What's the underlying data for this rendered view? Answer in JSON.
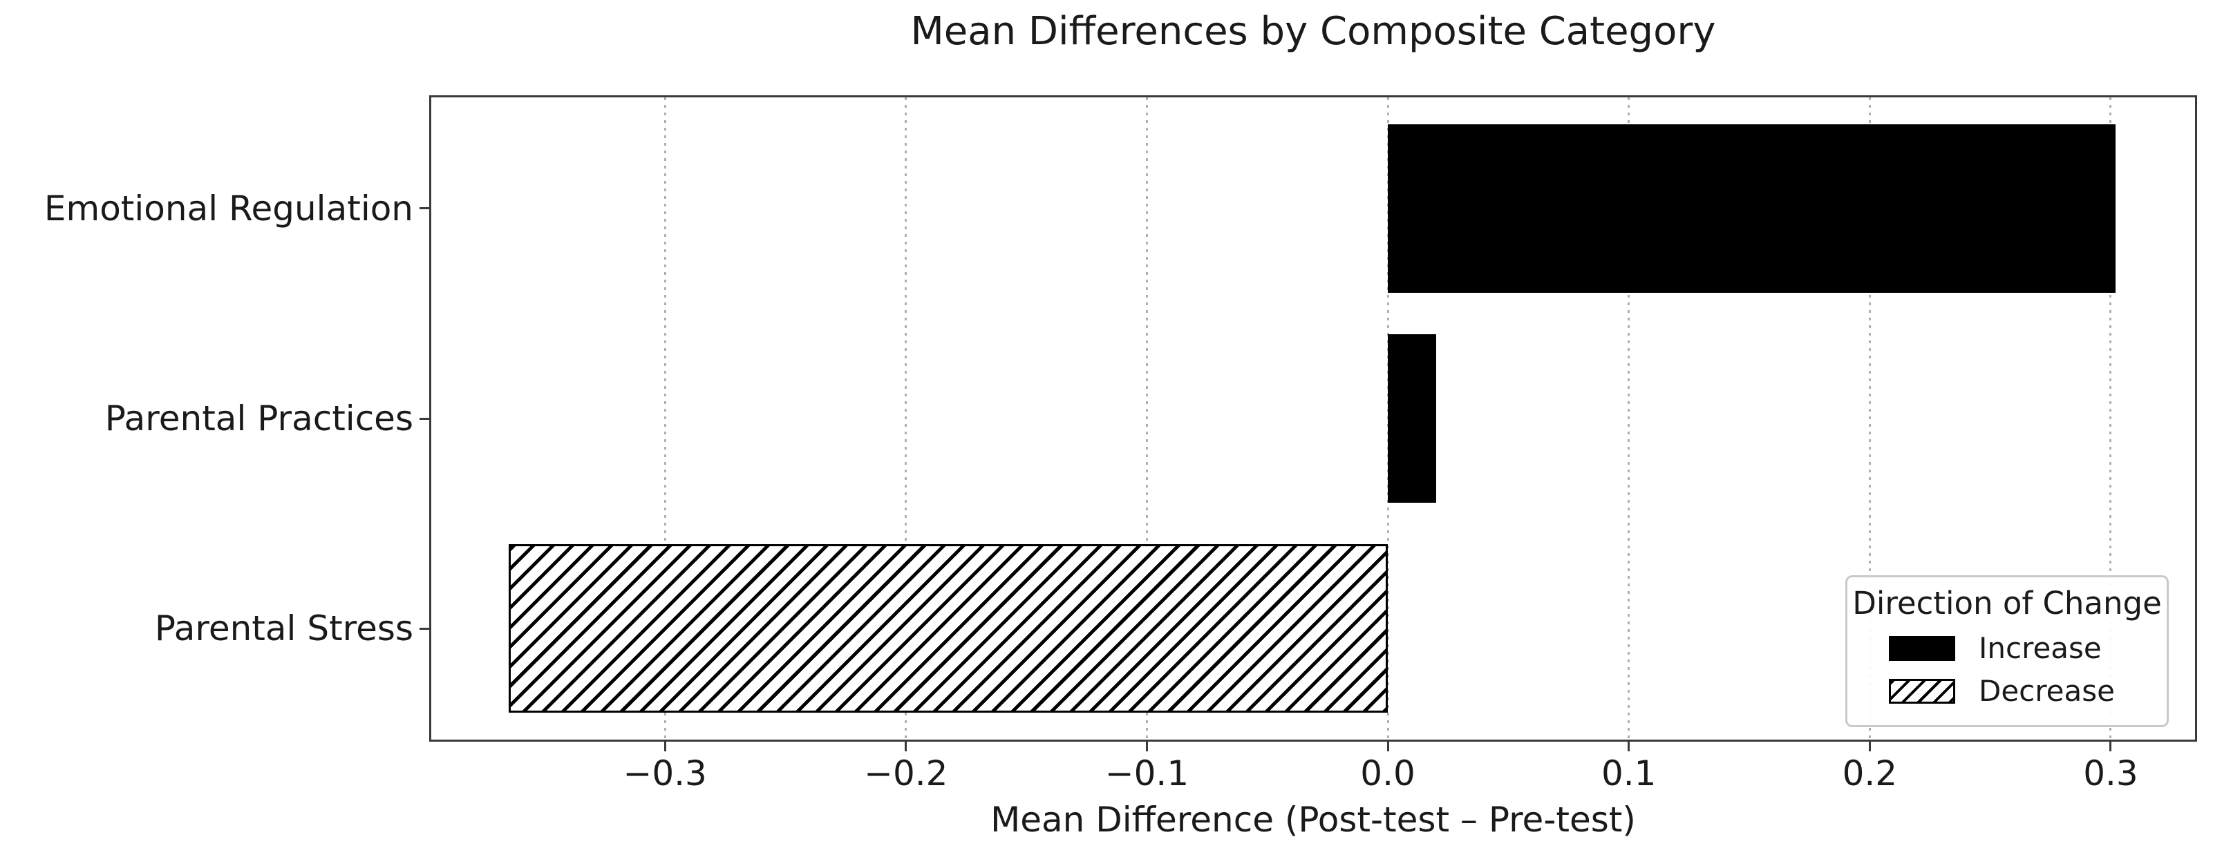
{
  "chart_data": {
    "type": "bar",
    "orientation": "horizontal",
    "title": "Mean Differences by Composite Category",
    "xlabel": "Mean Difference (Post-test – Pre-test)",
    "categories": [
      "Emotional Regulation",
      "Parental Practices",
      "Parental Stress"
    ],
    "values": [
      0.302,
      0.02,
      -0.365
    ],
    "directions": [
      "Increase",
      "Increase",
      "Decrease"
    ],
    "xlim": [
      -0.397,
      0.335
    ],
    "xticks": [
      -0.3,
      -0.2,
      -0.1,
      0.0,
      0.1,
      0.2,
      0.3
    ],
    "xtick_labels": [
      "−0.3",
      "−0.2",
      "−0.1",
      "0.0",
      "0.1",
      "0.2",
      "0.3"
    ],
    "grid": "vertical dotted gridlines at each x tick",
    "legend": {
      "title": "Direction of Change",
      "position": "lower right",
      "entries": [
        {
          "label": "Increase",
          "swatch": "solid"
        },
        {
          "label": "Decrease",
          "swatch": "hatched"
        }
      ]
    },
    "colors": {
      "bar_fill": "#000000",
      "bar_edge": "#000000",
      "hatch_background": "#ffffff",
      "grid": "#b0b0b0",
      "spine": "#3a3a3a",
      "text": "#1a1a1a",
      "legend_border": "#c9c9c9",
      "background": "#ffffff"
    }
  }
}
